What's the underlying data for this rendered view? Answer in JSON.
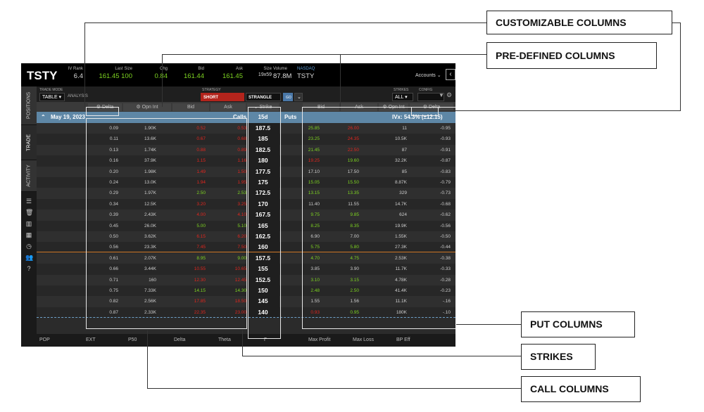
{
  "symbol": "TSTY",
  "stats": [
    {
      "label": "IV Rank",
      "value": "6.4",
      "color": "white"
    },
    {
      "label": "Last Size",
      "value": "161.45 100",
      "color": "mixed"
    },
    {
      "label": "Chg",
      "value": "0.84",
      "color": "green"
    },
    {
      "label": "Bid",
      "value": "161.44",
      "color": "green"
    },
    {
      "label": "Ask",
      "value": "161.45",
      "color": "green"
    },
    {
      "label": "Size",
      "value": "19x59",
      "color": "white"
    },
    {
      "label": "Volume",
      "value": "87.8M",
      "color": "white"
    },
    {
      "label": "NASDAQ",
      "value": "TSTY",
      "color": "white"
    }
  ],
  "accounts_label": "Accounts",
  "toolbar": {
    "trade_mode_label": "TRADE MODE",
    "trade_mode_value": "TABLE",
    "analysis_label": "ANALYSIS",
    "strategy_label": "STRATEGY",
    "strategy_side": "SHORT",
    "strategy_type": "STRANGLE",
    "go_label": "GO",
    "strikes_label": "STRIKES",
    "strikes_value": "ALL",
    "config_label": "CONFIG"
  },
  "side_tabs": [
    "POSITIONS",
    "TRADE",
    "ACTIVITY"
  ],
  "side_icons": [
    "list-icon",
    "trash-icon",
    "chart-icon",
    "grid-icon",
    "clock-icon",
    "people-icon",
    "help-icon"
  ],
  "column_headers": {
    "call": [
      "Delta",
      "Opn Int",
      "Bid",
      "Ask"
    ],
    "strike": "Strike",
    "put": [
      "Bid",
      "Ask",
      "Opn Int",
      "Delta"
    ]
  },
  "date_bar": {
    "date": "May 19, 2023",
    "calls_label": "Calls",
    "dte": "15d",
    "puts_label": "Puts",
    "iv": "IVx: 54.3% (±12.15)"
  },
  "rows": [
    {
      "call_delta": "0.09",
      "call_oi": "1.90K",
      "call_bid": "0.52",
      "call_ask": "0.53",
      "strike": "187.5",
      "put_bid": "25.85",
      "put_ask": "26.00",
      "put_oi": "11",
      "put_delta": "-0.95"
    },
    {
      "call_delta": "0.11",
      "call_oi": "13.6K",
      "call_bid": "0.67",
      "call_ask": "0.68",
      "strike": "185",
      "put_bid": "23.25",
      "put_ask": "24.35",
      "put_oi": "10.5K",
      "put_delta": "-0.93"
    },
    {
      "call_delta": "0.13",
      "call_oi": "1.74K",
      "call_bid": "0.88",
      "call_ask": "0.89",
      "strike": "182.5",
      "put_bid": "21.45",
      "put_ask": "22.50",
      "put_oi": "87",
      "put_delta": "-0.91"
    },
    {
      "call_delta": "0.16",
      "call_oi": "37.9K",
      "call_bid": "1.15",
      "call_ask": "1.16",
      "strike": "180",
      "put_bid": "19.25",
      "put_ask": "19.60",
      "put_oi": "32.2K",
      "put_delta": "-0.87"
    },
    {
      "call_delta": "0.20",
      "call_oi": "1.98K",
      "call_bid": "1.49",
      "call_ask": "1.50",
      "strike": "177.5",
      "put_bid": "17.10",
      "put_ask": "17.50",
      "put_oi": "85",
      "put_delta": "-0.83"
    },
    {
      "call_delta": "0.24",
      "call_oi": "13.0K",
      "call_bid": "1.94",
      "call_ask": "1.95",
      "strike": "175",
      "put_bid": "15.05",
      "put_ask": "15.50",
      "put_oi": "8.87K",
      "put_delta": "-0.79"
    },
    {
      "call_delta": "0.29",
      "call_oi": "1.97K",
      "call_bid": "2.50",
      "call_ask": "2.53",
      "strike": "172.5",
      "put_bid": "13.15",
      "put_ask": "13.35",
      "put_oi": "329",
      "put_delta": "-0.73"
    },
    {
      "call_delta": "0.34",
      "call_oi": "12.5K",
      "call_bid": "3.20",
      "call_ask": "3.25",
      "strike": "170",
      "put_bid": "11.40",
      "put_ask": "11.55",
      "put_oi": "14.7K",
      "put_delta": "-0.68"
    },
    {
      "call_delta": "0.39",
      "call_oi": "2.43K",
      "call_bid": "4.00",
      "call_ask": "4.10",
      "strike": "167.5",
      "put_bid": "9.75",
      "put_ask": "9.85",
      "put_oi": "624",
      "put_delta": "-0.62"
    },
    {
      "call_delta": "0.45",
      "call_oi": "26.0K",
      "call_bid": "5.00",
      "call_ask": "5.10",
      "strike": "165",
      "put_bid": "8.25",
      "put_ask": "8.35",
      "put_oi": "19.9K",
      "put_delta": "-0.56"
    },
    {
      "call_delta": "0.50",
      "call_oi": "3.62K",
      "call_bid": "6.15",
      "call_ask": "6.20",
      "strike": "162.5",
      "put_bid": "6.90",
      "put_ask": "7.00",
      "put_oi": "1.55K",
      "put_delta": "-0.50"
    },
    {
      "call_delta": "0.56",
      "call_oi": "23.3K",
      "call_bid": "7.45",
      "call_ask": "7.50",
      "strike": "160",
      "put_bid": "5.75",
      "put_ask": "5.80",
      "put_oi": "27.3K",
      "put_delta": "-0.44"
    },
    {
      "call_delta": "0.61",
      "call_oi": "2.07K",
      "call_bid": "8.95",
      "call_ask": "9.00",
      "strike": "157.5",
      "put_bid": "4.70",
      "put_ask": "4.75",
      "put_oi": "2.53K",
      "put_delta": "-0.38"
    },
    {
      "call_delta": "0.66",
      "call_oi": "3.44K",
      "call_bid": "10.55",
      "call_ask": "10.65",
      "strike": "155",
      "put_bid": "3.85",
      "put_ask": "3.90",
      "put_oi": "11.7K",
      "put_delta": "-0.33"
    },
    {
      "call_delta": "0.71",
      "call_oi": "160",
      "call_bid": "12.30",
      "call_ask": "12.45",
      "strike": "152.5",
      "put_bid": "3.10",
      "put_ask": "3.15",
      "put_oi": "4.78K",
      "put_delta": "-0.28"
    },
    {
      "call_delta": "0.75",
      "call_oi": "7.33K",
      "call_bid": "14.15",
      "call_ask": "14.30",
      "strike": "150",
      "put_bid": "2.48",
      "put_ask": "2.50",
      "put_oi": "41.4K",
      "put_delta": "-0.23"
    },
    {
      "call_delta": "0.82",
      "call_oi": "2.56K",
      "call_bid": "17.85",
      "call_ask": "18.50",
      "strike": "145",
      "put_bid": "1.55",
      "put_ask": "1.56",
      "put_oi": "11.1K",
      "put_delta": "-.16"
    },
    {
      "call_delta": "0.87",
      "call_oi": "2.33K",
      "call_bid": "22.35",
      "call_ask": "23.00",
      "strike": "140",
      "put_bid": "0.93",
      "put_ask": "0.95",
      "put_oi": "180K",
      "put_delta": "-.10"
    }
  ],
  "footer": [
    "POP",
    "EXT",
    "P50",
    "Delta",
    "Theta",
    "Γ",
    "Max Profit",
    "Max Loss",
    "BP Eff"
  ],
  "callouts": {
    "customizable": "CUSTOMIZABLE COLUMNS",
    "predefined": "PRE-DEFINED COLUMNS",
    "put_columns": "PUT COLUMNS",
    "strikes": "STRIKES",
    "call_columns": "CALL COLUMNS"
  },
  "colors": {
    "bg": "#2b2b2b",
    "green": "#7dd321",
    "red": "#e0261e",
    "date_bar": "#5e87a6",
    "strategy_short": "#b3241c",
    "go_button": "#4a78a8"
  }
}
